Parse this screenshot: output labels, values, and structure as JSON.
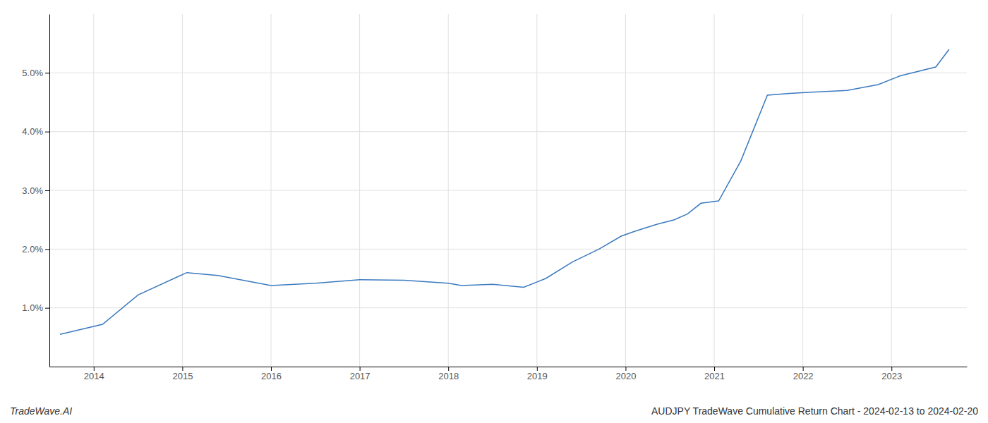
{
  "chart_data": {
    "type": "line",
    "title": "AUDJPY TradeWave Cumulative Return Chart - 2024-02-13 to 2024-02-20",
    "annotations": [
      "TradeWave.AI"
    ],
    "color": "#3a7abf",
    "x": [
      2013.62,
      2014.1,
      2014.5,
      2015.05,
      2015.4,
      2016.0,
      2016.5,
      2017.0,
      2017.5,
      2018.0,
      2018.15,
      2018.5,
      2018.85,
      2019.1,
      2019.4,
      2019.7,
      2019.95,
      2020.1,
      2020.35,
      2020.55,
      2020.7,
      2020.85,
      2021.05,
      2021.3,
      2021.6,
      2021.85,
      2022.1,
      2022.5,
      2022.85,
      2023.1,
      2023.5,
      2023.65
    ],
    "values": [
      0.55,
      0.72,
      1.22,
      1.6,
      1.55,
      1.38,
      1.42,
      1.48,
      1.47,
      1.42,
      1.38,
      1.4,
      1.35,
      1.5,
      1.78,
      2.0,
      2.22,
      2.3,
      2.42,
      2.5,
      2.6,
      2.78,
      2.82,
      3.5,
      4.62,
      4.65,
      4.67,
      4.7,
      4.8,
      4.95,
      5.1,
      5.4
    ],
    "xlim": [
      2013.5,
      2023.85
    ],
    "ylim": [
      0.0,
      6.0
    ],
    "xticks": [
      2014,
      2015,
      2016,
      2017,
      2018,
      2019,
      2020,
      2021,
      2022,
      2023
    ],
    "yticks": [
      {
        "value": 1.0,
        "label": "1.0%"
      },
      {
        "value": 2.0,
        "label": "2.0%"
      },
      {
        "value": 3.0,
        "label": "3.0%"
      },
      {
        "value": 4.0,
        "label": "4.0%"
      },
      {
        "value": 5.0,
        "label": "5.0%"
      }
    ],
    "grid": true
  }
}
